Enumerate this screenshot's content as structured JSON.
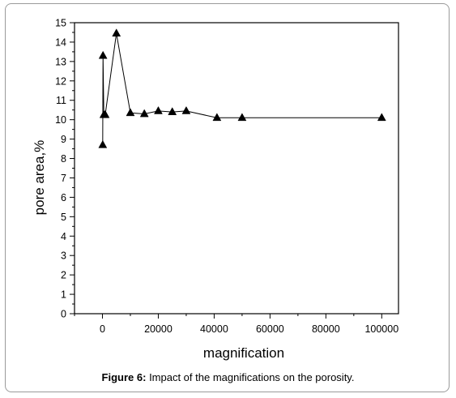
{
  "caption": {
    "label": "Figure 6:",
    "text": "Impact of the magnifications on the porosity."
  },
  "chart_data": {
    "type": "line",
    "xlabel": "magnification",
    "ylabel": "pore area,%",
    "xlim": [
      -10000,
      106000
    ],
    "ylim": [
      0,
      15
    ],
    "xticks": [
      0,
      20000,
      40000,
      60000,
      80000,
      100000
    ],
    "yticks": [
      0,
      1,
      2,
      3,
      4,
      5,
      6,
      7,
      8,
      9,
      10,
      11,
      12,
      13,
      14,
      15
    ],
    "marker": "filled-triangle",
    "line_color": "#000000",
    "series": [
      {
        "x": [
          100,
          200,
          500,
          1000,
          5000,
          10000,
          15000,
          20000,
          25000,
          30000,
          41000,
          50000,
          100000
        ],
        "y": [
          8.7,
          13.3,
          10.25,
          10.25,
          14.45,
          10.35,
          10.3,
          10.45,
          10.4,
          10.45,
          10.1,
          10.1,
          10.1
        ]
      }
    ]
  }
}
